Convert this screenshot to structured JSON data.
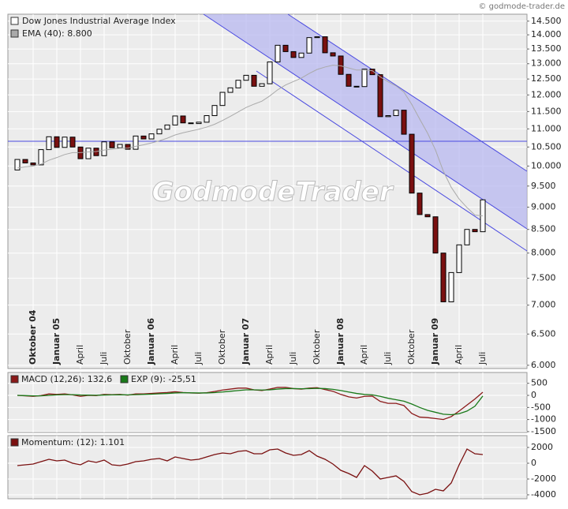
{
  "copyright": "© godmode-trader.de",
  "watermark": "GodmodeTrader",
  "chart_data": [
    {
      "type": "candlestick",
      "log_scale": true,
      "grid": true,
      "categories": [
        null,
        null,
        "Oktober 04",
        null,
        null,
        "Januar 05",
        null,
        null,
        "April",
        null,
        null,
        "Juli",
        null,
        null,
        "Oktober",
        null,
        null,
        "Januar 06",
        null,
        null,
        "April",
        null,
        null,
        "Juli",
        null,
        null,
        "Oktober",
        null,
        null,
        "Januar 07",
        null,
        null,
        "April",
        null,
        null,
        "Juli",
        null,
        null,
        "Oktober",
        null,
        null,
        "Januar 08",
        null,
        null,
        "April",
        null,
        null,
        "Juli",
        null,
        null,
        "Oktober",
        null,
        null,
        "Januar 09",
        null,
        null,
        "April",
        null,
        null,
        "Juli"
      ],
      "ylim": [
        5950,
        14760
      ],
      "yticks": [
        {
          "value": 6000,
          "label": "6.000"
        },
        {
          "value": 6500,
          "label": "6.500"
        },
        {
          "value": 7000,
          "label": "7.000"
        },
        {
          "value": 7500,
          "label": "7.500"
        },
        {
          "value": 8000,
          "label": "8.000"
        },
        {
          "value": 8500,
          "label": "8.500"
        },
        {
          "value": 9000,
          "label": "9.000"
        },
        {
          "value": 9500,
          "label": "9.500"
        },
        {
          "value": 10000,
          "label": "10.000"
        },
        {
          "value": 10500,
          "label": "10.500"
        },
        {
          "value": 11000,
          "label": "11.000"
        },
        {
          "value": 11500,
          "label": "11.500"
        },
        {
          "value": 12000,
          "label": "12.000"
        },
        {
          "value": 12500,
          "label": "12.500"
        },
        {
          "value": 13000,
          "label": "13.000"
        },
        {
          "value": 13500,
          "label": "13.500"
        },
        {
          "value": 14000,
          "label": "14.000"
        },
        {
          "value": 14500,
          "label": "14.500"
        }
      ],
      "series": [
        {
          "name": "Dow Jones Industrial Average Index",
          "color": "#000000",
          "down_color": "#7a1010",
          "open": [
            9900,
            10170,
            10080,
            10030,
            10430,
            10780,
            10490,
            10770,
            10500,
            10190,
            10470,
            10270,
            10640,
            10480,
            10570,
            10440,
            10800,
            10720,
            10860,
            10990,
            11110,
            11370,
            11170,
            11150,
            11190,
            11380,
            11680,
            12080,
            12220,
            12460,
            12620,
            12270,
            12350,
            13060,
            13630,
            13410,
            13210,
            13360,
            13900,
            13930,
            13370,
            13260,
            12650,
            12270,
            12260,
            12820,
            12640,
            11350,
            11380,
            11540,
            10850,
            9330,
            8830,
            8780,
            8000,
            7060,
            7610,
            8170,
            8500,
            8450
          ],
          "values": [
            10170,
            10080,
            10030,
            10430,
            10780,
            10490,
            10770,
            10500,
            10190,
            10470,
            10270,
            10640,
            10480,
            10570,
            10440,
            10800,
            10720,
            10860,
            10990,
            11110,
            11370,
            11170,
            11150,
            11190,
            11380,
            11680,
            12080,
            12220,
            12460,
            12620,
            12270,
            12350,
            13060,
            13630,
            13410,
            13210,
            13360,
            13900,
            13930,
            13370,
            13260,
            12650,
            12270,
            12260,
            12820,
            12640,
            11350,
            11380,
            11540,
            10850,
            9330,
            8830,
            8780,
            8000,
            7060,
            7610,
            8170,
            8500,
            8450,
            9170
          ]
        },
        {
          "name": "EMA (40): 8.800",
          "color": "#aaaaaa",
          "line": true,
          "values": [
            9950,
            9980,
            10000,
            10050,
            10150,
            10220,
            10300,
            10350,
            10350,
            10370,
            10380,
            10420,
            10440,
            10470,
            10470,
            10520,
            10560,
            10610,
            10670,
            10740,
            10830,
            10890,
            10940,
            10990,
            11050,
            11130,
            11240,
            11360,
            11490,
            11620,
            11720,
            11810,
            11970,
            12160,
            12310,
            12420,
            12530,
            12680,
            12810,
            12890,
            12950,
            12930,
            12860,
            12790,
            12790,
            12770,
            12570,
            12410,
            12280,
            12090,
            11710,
            11280,
            10880,
            10420,
            9870,
            9470,
            9190,
            8990,
            8820,
            8800
          ]
        }
      ]
    },
    {
      "type": "line",
      "grid": true,
      "ylim": [
        -1535,
        948
      ],
      "yticks": [
        500,
        0,
        -500,
        -1000,
        -1500
      ],
      "series": [
        {
          "name": "MACD (12,26): 132,6",
          "color": "#8b1a1a",
          "values": [
            0,
            -20,
            -40,
            -10,
            60,
            40,
            60,
            20,
            -40,
            0,
            -10,
            40,
            30,
            40,
            10,
            60,
            60,
            80,
            100,
            120,
            150,
            120,
            100,
            90,
            110,
            160,
            220,
            260,
            300,
            300,
            230,
            200,
            260,
            330,
            330,
            280,
            260,
            300,
            320,
            240,
            170,
            40,
            -60,
            -110,
            -40,
            -30,
            -250,
            -330,
            -330,
            -420,
            -750,
            -900,
            -920,
            -960,
            -1000,
            -880,
            -650,
            -400,
            -150,
            132.6
          ]
        },
        {
          "name": "EXP (9): -25,51",
          "color": "#1a7a1a",
          "values": [
            0,
            -10,
            -20,
            -20,
            0,
            20,
            30,
            30,
            15,
            10,
            5,
            15,
            20,
            25,
            20,
            30,
            40,
            50,
            65,
            80,
            100,
            110,
            105,
            100,
            100,
            115,
            140,
            170,
            200,
            230,
            230,
            220,
            230,
            260,
            280,
            280,
            275,
            280,
            290,
            280,
            250,
            200,
            140,
            80,
            40,
            20,
            -40,
            -120,
            -180,
            -240,
            -360,
            -500,
            -620,
            -700,
            -780,
            -800,
            -760,
            -650,
            -450,
            -25.51
          ]
        }
      ]
    },
    {
      "type": "line",
      "grid": true,
      "ylim": [
        -4500,
        3500
      ],
      "yticks": [
        2000,
        0,
        -2000,
        -4000
      ],
      "series": [
        {
          "name": "Momentum: (12): 1.101",
          "color": "#7a1010",
          "values": [
            -300,
            -200,
            -100,
            200,
            500,
            300,
            400,
            0,
            -200,
            300,
            100,
            400,
            -200,
            -300,
            -100,
            200,
            300,
            500,
            600,
            300,
            800,
            600,
            400,
            500,
            800,
            1100,
            1300,
            1200,
            1500,
            1600,
            1200,
            1200,
            1700,
            1800,
            1300,
            1000,
            1100,
            1600,
            900,
            500,
            -100,
            -900,
            -1300,
            -1800,
            -300,
            -1000,
            -2000,
            -1800,
            -1600,
            -2300,
            -3600,
            -4000,
            -3800,
            -3300,
            -3500,
            -2500,
            -200,
            1800,
            1200,
            1101
          ]
        }
      ]
    }
  ]
}
